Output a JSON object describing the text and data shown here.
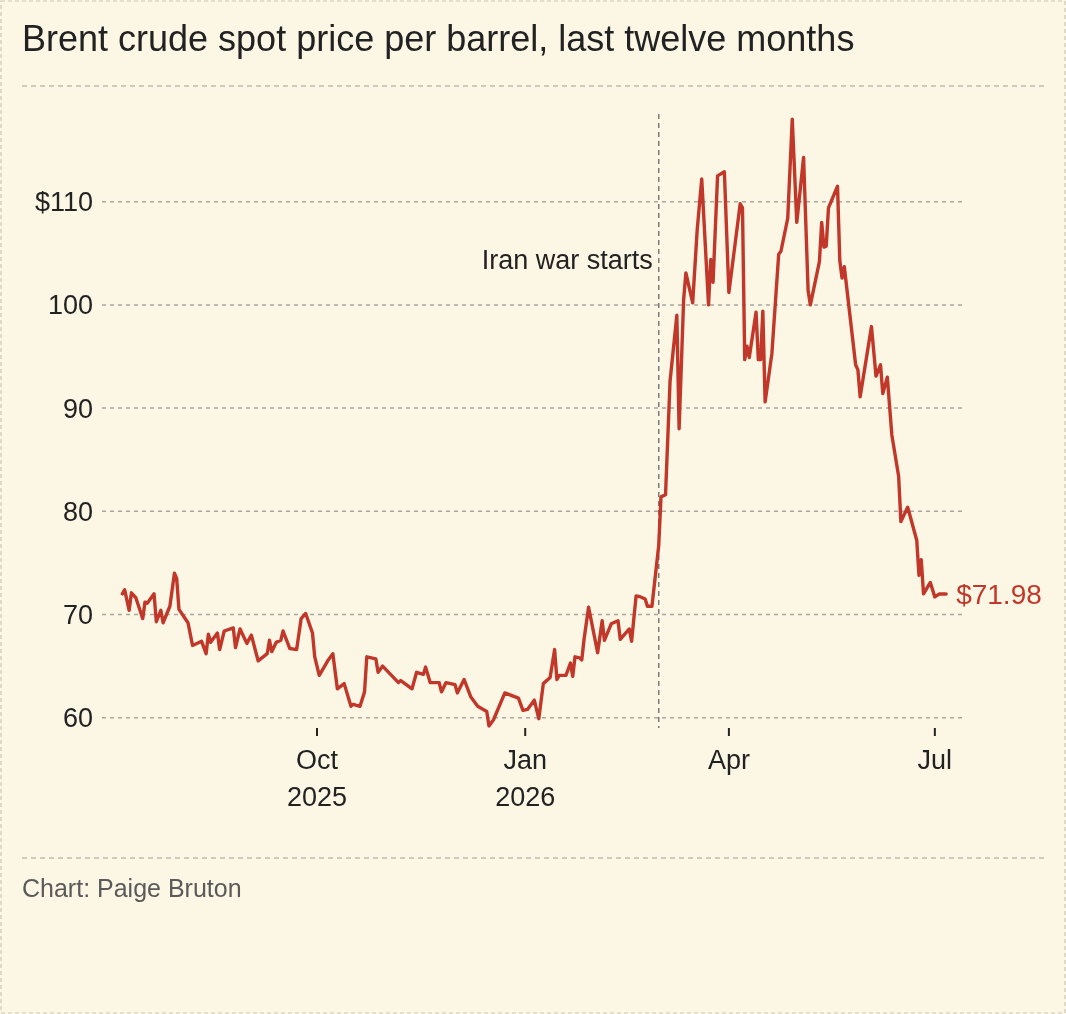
{
  "chart_data": {
    "type": "line",
    "title": "Brent crude spot price per barrel, last twelve months",
    "x": [
      "2025-07-07",
      "2025-07-08",
      "2025-07-10",
      "2025-07-11",
      "2025-07-13",
      "2025-07-16",
      "2025-07-17",
      "2025-07-18",
      "2025-07-21",
      "2025-07-22",
      "2025-07-24",
      "2025-07-25",
      "2025-07-28",
      "2025-07-30",
      "2025-07-31",
      "2025-08-01",
      "2025-08-05",
      "2025-08-07",
      "2025-08-11",
      "2025-08-13",
      "2025-08-14",
      "2025-08-15",
      "2025-08-18",
      "2025-08-19",
      "2025-08-21",
      "2025-08-25",
      "2025-08-26",
      "2025-08-28",
      "2025-08-31",
      "2025-09-02",
      "2025-09-05",
      "2025-09-09",
      "2025-09-10",
      "2025-09-11",
      "2025-09-13",
      "2025-09-15",
      "2025-09-16",
      "2025-09-19",
      "2025-09-22",
      "2025-09-24",
      "2025-09-26",
      "2025-09-29",
      "2025-09-30",
      "2025-10-02",
      "2025-10-06",
      "2025-10-08",
      "2025-10-10",
      "2025-10-13",
      "2025-10-16",
      "2025-10-17",
      "2025-10-20",
      "2025-10-22",
      "2025-10-23",
      "2025-10-27",
      "2025-10-28",
      "2025-10-30",
      "2025-11-06",
      "2025-11-07",
      "2025-11-12",
      "2025-11-14",
      "2025-11-17",
      "2025-11-18",
      "2025-11-20",
      "2025-11-24",
      "2025-11-25",
      "2025-11-27",
      "2025-12-01",
      "2025-12-02",
      "2025-12-05",
      "2025-12-08",
      "2025-12-11",
      "2025-12-15",
      "2025-12-16",
      "2025-12-18",
      "2025-12-23",
      "2025-12-29",
      "2025-12-31",
      "2026-01-02",
      "2026-01-05",
      "2026-01-07",
      "2026-01-09",
      "2026-01-12",
      "2026-01-14",
      "2026-01-15",
      "2026-01-16",
      "2026-01-19",
      "2026-01-21",
      "2026-01-22",
      "2026-01-23",
      "2026-01-25",
      "2026-01-26",
      "2026-01-27",
      "2026-01-29",
      "2026-02-02",
      "2026-02-04",
      "2026-02-05",
      "2026-02-08",
      "2026-02-11",
      "2026-02-12",
      "2026-02-16",
      "2026-02-17",
      "2026-02-19",
      "2026-02-21",
      "2026-02-23",
      "2026-02-24",
      "2026-02-26",
      "2026-03-01",
      "2026-03-02",
      "2026-03-04",
      "2026-03-06",
      "2026-03-09",
      "2026-03-10",
      "2026-03-12",
      "2026-03-13",
      "2026-03-16",
      "2026-03-18",
      "2026-03-20",
      "2026-03-23",
      "2026-03-24",
      "2026-03-25",
      "2026-03-27",
      "2026-03-30",
      "2026-04-01",
      "2026-04-06",
      "2026-04-07",
      "2026-04-08",
      "2026-04-09",
      "2026-04-10",
      "2026-04-13",
      "2026-04-14",
      "2026-04-15",
      "2026-04-16",
      "2026-04-17",
      "2026-04-20",
      "2026-04-23",
      "2026-04-24",
      "2026-04-27",
      "2026-04-29",
      "2026-05-01",
      "2026-05-04",
      "2026-05-06",
      "2026-05-07",
      "2026-05-11",
      "2026-05-12",
      "2026-05-13",
      "2026-05-14",
      "2026-05-15",
      "2026-05-19",
      "2026-05-20",
      "2026-05-21",
      "2026-05-22",
      "2026-05-27",
      "2026-05-28",
      "2026-05-29",
      "2026-06-03",
      "2026-06-05",
      "2026-06-07",
      "2026-06-08",
      "2026-06-10",
      "2026-06-12",
      "2026-06-15",
      "2026-06-16",
      "2026-06-19",
      "2026-06-23",
      "2026-06-24",
      "2026-06-25",
      "2026-06-26",
      "2026-06-29",
      "2026-07-01",
      "2026-07-03",
      "2026-07-06"
    ],
    "series": [
      {
        "color": "#c1382b",
        "values": [
          72.0,
          72.4,
          70.4,
          72.1,
          71.6,
          69.6,
          71.2,
          71.1,
          72.0,
          69.3,
          70.4,
          69.2,
          70.8,
          74.0,
          73.5,
          70.5,
          69.2,
          67.0,
          67.4,
          66.2,
          68.1,
          67.3,
          68.2,
          66.6,
          68.4,
          68.7,
          66.8,
          68.6,
          67.2,
          68.0,
          65.5,
          66.2,
          67.5,
          66.4,
          67.3,
          67.5,
          68.4,
          66.7,
          66.6,
          69.6,
          70.1,
          68.2,
          65.9,
          64.1,
          65.6,
          66.2,
          62.8,
          63.3,
          61.1,
          61.3,
          61.1,
          62.5,
          65.9,
          65.7,
          64.4,
          65.0,
          63.4,
          63.6,
          62.8,
          64.4,
          64.2,
          64.9,
          63.4,
          63.4,
          62.5,
          63.4,
          63.2,
          62.4,
          63.7,
          62.0,
          61.1,
          60.6,
          59.2,
          59.8,
          62.4,
          61.9,
          60.7,
          60.8,
          61.7,
          59.9,
          63.3,
          63.9,
          66.6,
          63.7,
          64.1,
          64.1,
          65.3,
          64.0,
          65.9,
          65.8,
          65.6,
          67.6,
          70.7,
          66.3,
          69.4,
          67.5,
          69.1,
          69.4,
          67.6,
          68.6,
          67.4,
          71.8,
          71.7,
          71.5,
          70.8,
          70.8,
          76.7,
          81.4,
          81.6,
          92.6,
          99.0,
          88.0,
          100.5,
          103.1,
          100.2,
          107.3,
          112.2,
          100.0,
          104.4,
          102.2,
          112.5,
          112.9,
          101.2,
          109.8,
          109.4,
          94.7,
          96.0,
          94.9,
          99.3,
          94.7,
          94.7,
          99.4,
          90.6,
          95.3,
          104.9,
          105.2,
          108.4,
          118.0,
          108.0,
          114.3,
          101.4,
          100.0,
          104.2,
          108.0,
          105.6,
          105.7,
          109.4,
          111.5,
          104.3,
          102.6,
          103.7,
          94.2,
          93.7,
          91.1,
          97.9,
          93.1,
          94.2,
          91.4,
          93.0,
          87.4,
          83.4,
          79.0,
          80.4,
          77.2,
          73.8,
          75.3,
          72.0,
          73.1,
          71.7,
          72.0,
          71.98
        ]
      }
    ],
    "xlim": [
      "2025-06-28",
      "2026-07-13"
    ],
    "xticks": [
      {
        "value": "2025-10-01",
        "label": "Oct\n2025"
      },
      {
        "value": "2026-01-01",
        "label": "Jan\n2026"
      },
      {
        "value": "2026-04-01",
        "label": "Apr"
      },
      {
        "value": "2026-07-01",
        "label": "Jul"
      }
    ],
    "ylim": [
      59,
      118.5
    ],
    "yticks": [
      60,
      70,
      80,
      90,
      100,
      {
        "value": 110,
        "label": "$110"
      }
    ],
    "grid": "y",
    "ref_lines": [
      {
        "axis": "x",
        "value": "2026-03-01",
        "label": "Iran war starts",
        "color": "#7a7a7a",
        "line_style": "dashed"
      }
    ],
    "annotations": [
      {
        "text": "$71.98",
        "x": "2026-07-06",
        "y": 71.98
      },
      "Chart: Paige Bruton"
    ]
  }
}
